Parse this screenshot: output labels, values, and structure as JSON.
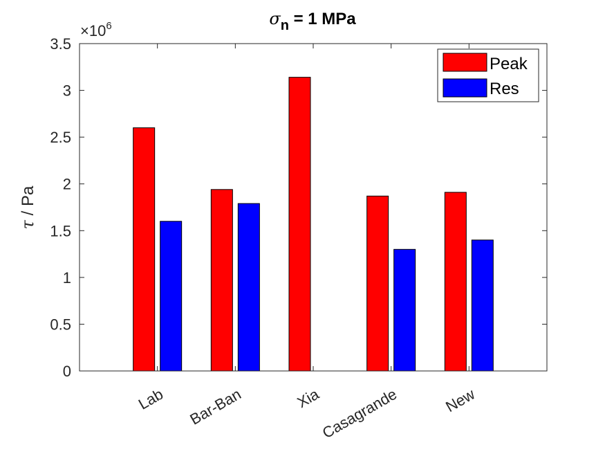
{
  "chart_data": {
    "type": "bar",
    "title_symbol": "σ",
    "title_subscript": "n",
    "title_rest": " = 1 MPa",
    "ylabel_symbol": "τ",
    "ylabel_rest": " / Pa",
    "y_exponent_prefix": "×10",
    "y_exponent_power": "6",
    "categories": [
      "Lab",
      "Bar-Ban",
      "Xia",
      "Casagrande",
      "New"
    ],
    "series": [
      {
        "name": "Peak",
        "color": "#ff0000",
        "values": [
          2600000,
          1940000,
          3140000,
          1870000,
          1910000
        ]
      },
      {
        "name": "Res",
        "color": "#0000ff",
        "values": [
          1600000,
          1790000,
          null,
          1300000,
          1400000
        ]
      }
    ],
    "ylim": [
      0,
      3500000
    ],
    "yticks": [
      0,
      500000,
      1000000,
      1500000,
      2000000,
      2500000,
      3000000,
      3500000
    ],
    "ytick_labels": [
      "0",
      "0.5",
      "1",
      "1.5",
      "2",
      "2.5",
      "3",
      "3.5"
    ],
    "grid": false,
    "legend_position": "top-right"
  }
}
